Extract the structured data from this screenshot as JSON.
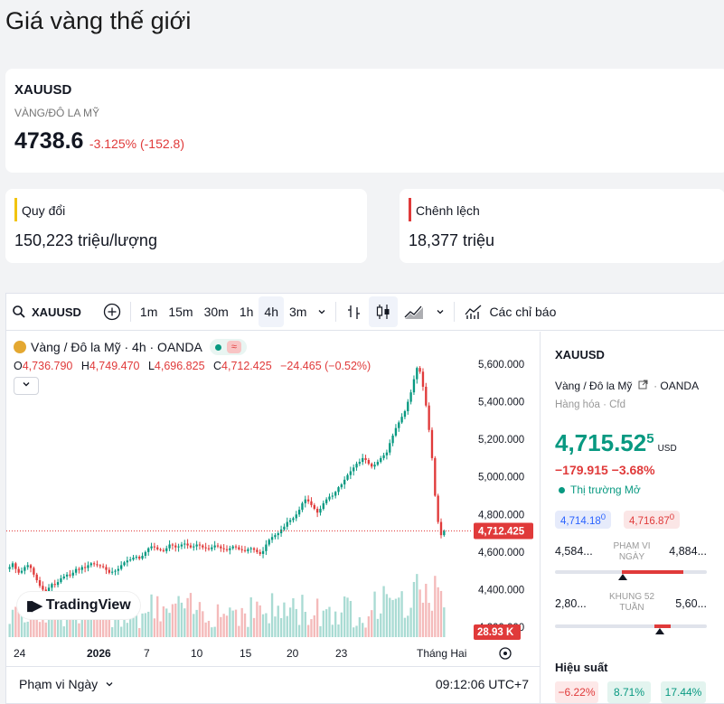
{
  "page": {
    "title": "Giá vàng thế giới"
  },
  "quote": {
    "symbol": "XAUUSD",
    "description": "VÀNG/ĐÔ LA MỸ",
    "price": "4738.6",
    "change": "-3.125% (-152.8)"
  },
  "conversion": {
    "label": "Quy đổi",
    "value": "150,223 triệu/lượng",
    "accent": "#f2c40f"
  },
  "spread": {
    "label": "Chênh lệch",
    "value": "18,377 triệu",
    "accent": "#e03a3a"
  },
  "toolbar": {
    "symbol": "XAUUSD",
    "intervals": [
      "1m",
      "15m",
      "30m",
      "1h",
      "4h",
      "3m"
    ],
    "active_interval": "4h",
    "indicators_label": "Các chỉ báo"
  },
  "legend": {
    "title": "Vàng / Đô la Mỹ · 4h · OANDA",
    "open_key": "O",
    "open": "4,736.790",
    "high_key": "H",
    "high": "4,749.470",
    "low_key": "L",
    "low": "4,696.825",
    "close_key": "C",
    "close": "4,712.425",
    "change": "−24.465 (−0.52%)"
  },
  "brand": {
    "name": "TradingView"
  },
  "chart_data": {
    "type": "candlestick",
    "interval": "4h",
    "y_ticks": [
      "5,600.000",
      "5,400.000",
      "5,200.000",
      "5,000.000",
      "4,800.000",
      "4,600.000",
      "4,400.000",
      "4,200.000"
    ],
    "ylim": [
      4200,
      5650
    ],
    "x_ticks": [
      "24",
      "2026",
      "7",
      "10",
      "15",
      "20",
      "23",
      "Tháng Hai"
    ],
    "last_price_label": "4,712.425",
    "last_price": 4712.425,
    "volume_label": "28.93 K",
    "close_series": [
      4520,
      4540,
      4510,
      4490,
      4500,
      4520,
      4530,
      4515,
      4480,
      4450,
      4420,
      4400,
      4390,
      4410,
      4430,
      4425,
      4440,
      4460,
      4470,
      4480,
      4475,
      4490,
      4510,
      4505,
      4520,
      4515,
      4530,
      4540,
      4535,
      4530,
      4525,
      4520,
      4505,
      4490,
      4495,
      4500,
      4510,
      4530,
      4545,
      4555,
      4560,
      4570,
      4575,
      4565,
      4580,
      4600,
      4620,
      4630,
      4625,
      4615,
      4610,
      4605,
      4620,
      4640,
      4635,
      4625,
      4630,
      4640,
      4645,
      4635,
      4625,
      4630,
      4640,
      4635,
      4625,
      4620,
      4615,
      4625,
      4635,
      4630,
      4620,
      4615,
      4610,
      4620,
      4630,
      4625,
      4615,
      4610,
      4605,
      4615,
      4620,
      4612,
      4600,
      4590,
      4605,
      4640,
      4665,
      4680,
      4690,
      4700,
      4720,
      4735,
      4760,
      4770,
      4780,
      4800,
      4825,
      4860,
      4880,
      4870,
      4850,
      4830,
      4810,
      4830,
      4860,
      4880,
      4895,
      4900,
      4920,
      4945,
      4960,
      4985,
      5010,
      5030,
      5050,
      5070,
      5080,
      5100,
      5090,
      5070,
      5055,
      5065,
      5080,
      5100,
      5115,
      5130,
      5180,
      5220,
      5260,
      5290,
      5320,
      5350,
      5400,
      5450,
      5520,
      5580,
      5560,
      5480,
      5380,
      5250,
      5100,
      4900,
      4760,
      4690,
      4712
    ]
  },
  "footer": {
    "range": "Phạm vi Ngày",
    "time": "09:12:06 UTC+7"
  },
  "side": {
    "symbol": "XAUUSD",
    "description": "Vàng / Đô la Mỹ",
    "exchange": "OANDA",
    "category": "Hàng hóa · Cfd",
    "price_main": "4,715.52",
    "price_sup": "5",
    "currency": "USD",
    "change": "−179.915 −3.68%",
    "status": "Thị trường Mở",
    "bid": "4,714.18",
    "bid_sup": "0",
    "ask": "4,716.87",
    "ask_sup": "0",
    "day_low": "4,584...",
    "day_high": "4,884...",
    "day_label": "PHẠM VI NGÀY",
    "day_position": 0.26,
    "wk_low": "2,80...",
    "wk_high": "5,60...",
    "wk_label": "KHUNG 52 TUẦN",
    "wk_position": 0.69,
    "perf_title": "Hiệu suất",
    "perf": [
      "−6.22%",
      "8.71%",
      "17.44%"
    ]
  }
}
